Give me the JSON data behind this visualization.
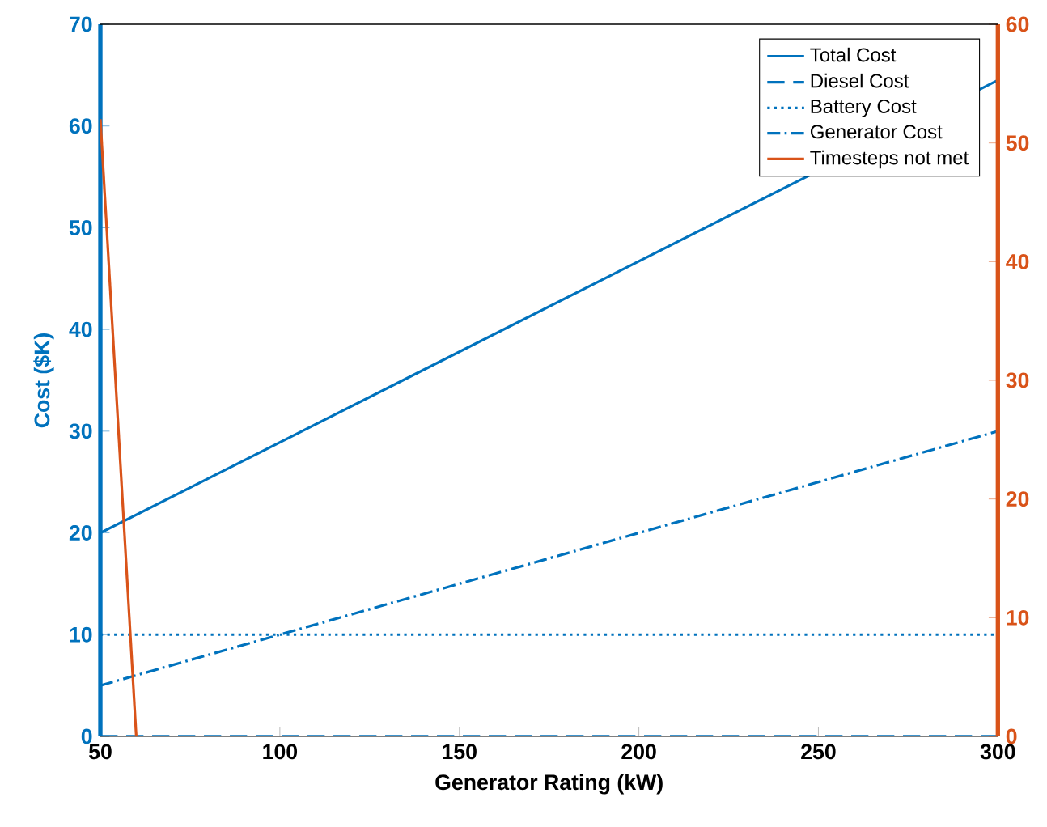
{
  "chart_data": {
    "type": "line",
    "xlabel": "Generator Rating (kW)",
    "ylabel": "Cost ($K)",
    "series": [
      {
        "name": "Total Cost",
        "color": "#0072bd",
        "line_style": "solid",
        "x": [
          50,
          300
        ],
        "values": [
          20,
          64.5
        ]
      },
      {
        "name": "Diesel Cost",
        "color": "#0072bd",
        "line_style": "dashed",
        "x": [
          50,
          300
        ],
        "values": [
          0,
          0
        ]
      },
      {
        "name": "Battery Cost",
        "color": "#0072bd",
        "line_style": "dotted",
        "x": [
          50,
          300
        ],
        "values": [
          10,
          10
        ]
      },
      {
        "name": "Generator Cost",
        "color": "#0072bd",
        "line_style": "dashdot",
        "x": [
          50,
          300
        ],
        "values": [
          5,
          30
        ]
      },
      {
        "name": "Timesteps not met",
        "color": "#d95319",
        "line_style": "solid",
        "axis": "y2",
        "x": [
          50,
          60
        ],
        "values": [
          52,
          0
        ]
      }
    ],
    "xlim": [
      50,
      300
    ],
    "xticks": [
      50,
      100,
      150,
      200,
      250,
      300
    ],
    "ylim": [
      0,
      70
    ],
    "yticks": [
      0,
      10,
      20,
      30,
      40,
      50,
      60,
      70
    ],
    "y2lim": [
      0,
      60
    ],
    "y2ticks": [
      0,
      10,
      20,
      30,
      40,
      50,
      60
    ],
    "legend": "top right",
    "marker": "none"
  }
}
